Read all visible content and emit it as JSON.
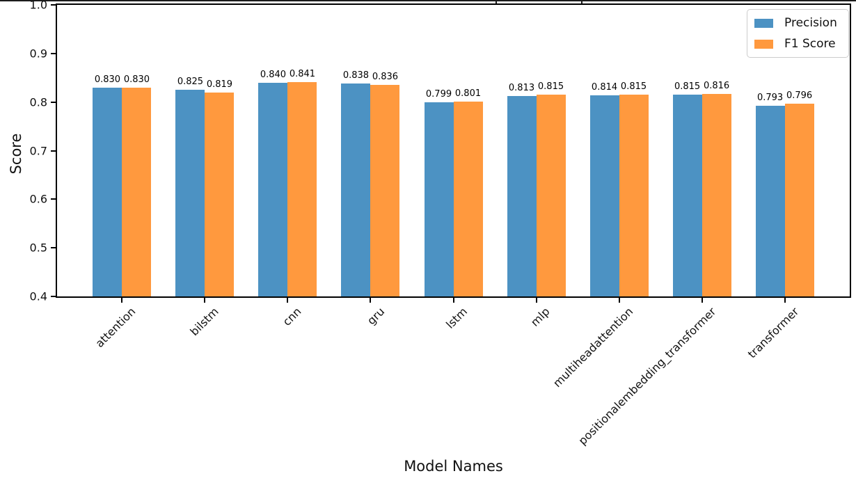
{
  "page": {
    "background": "#ffffff",
    "note_top_edge": "figure cropped at top; only title parentheses descenders visible"
  },
  "chart_data": {
    "type": "bar",
    "title": "",
    "xlabel": "Model Names",
    "ylabel": "Score",
    "ylim": [
      0.4,
      1.0
    ],
    "yticks": [
      0.4,
      0.5,
      0.6,
      0.7,
      0.8,
      0.9,
      1.0
    ],
    "ytick_labels": [
      "0.4",
      "0.5",
      "0.6",
      "0.7",
      "0.8",
      "0.9",
      "1.0"
    ],
    "categories": [
      "attention",
      "bilstm",
      "cnn",
      "gru",
      "lstm",
      "mlp",
      "multiheadattention",
      "positionalembedding_transformer",
      "transformer"
    ],
    "series": [
      {
        "name": "Precision",
        "color": "#4C92C3",
        "values": [
          0.83,
          0.825,
          0.84,
          0.838,
          0.799,
          0.813,
          0.814,
          0.815,
          0.793
        ],
        "labels": [
          "0.830",
          "0.825",
          "0.840",
          "0.838",
          "0.799",
          "0.813",
          "0.814",
          "0.815",
          "0.793"
        ]
      },
      {
        "name": "F1 Score",
        "color": "#FF993E",
        "values": [
          0.83,
          0.819,
          0.841,
          0.836,
          0.801,
          0.815,
          0.815,
          0.816,
          0.796
        ],
        "labels": [
          "0.830",
          "0.819",
          "0.841",
          "0.836",
          "0.801",
          "0.815",
          "0.815",
          "0.816",
          "0.796"
        ]
      }
    ],
    "legend": {
      "position": "top-right",
      "entries": [
        "Precision",
        "F1 Score"
      ]
    },
    "grid": false,
    "bar_value_labels": true,
    "x_tick_rotation_deg": 45
  }
}
